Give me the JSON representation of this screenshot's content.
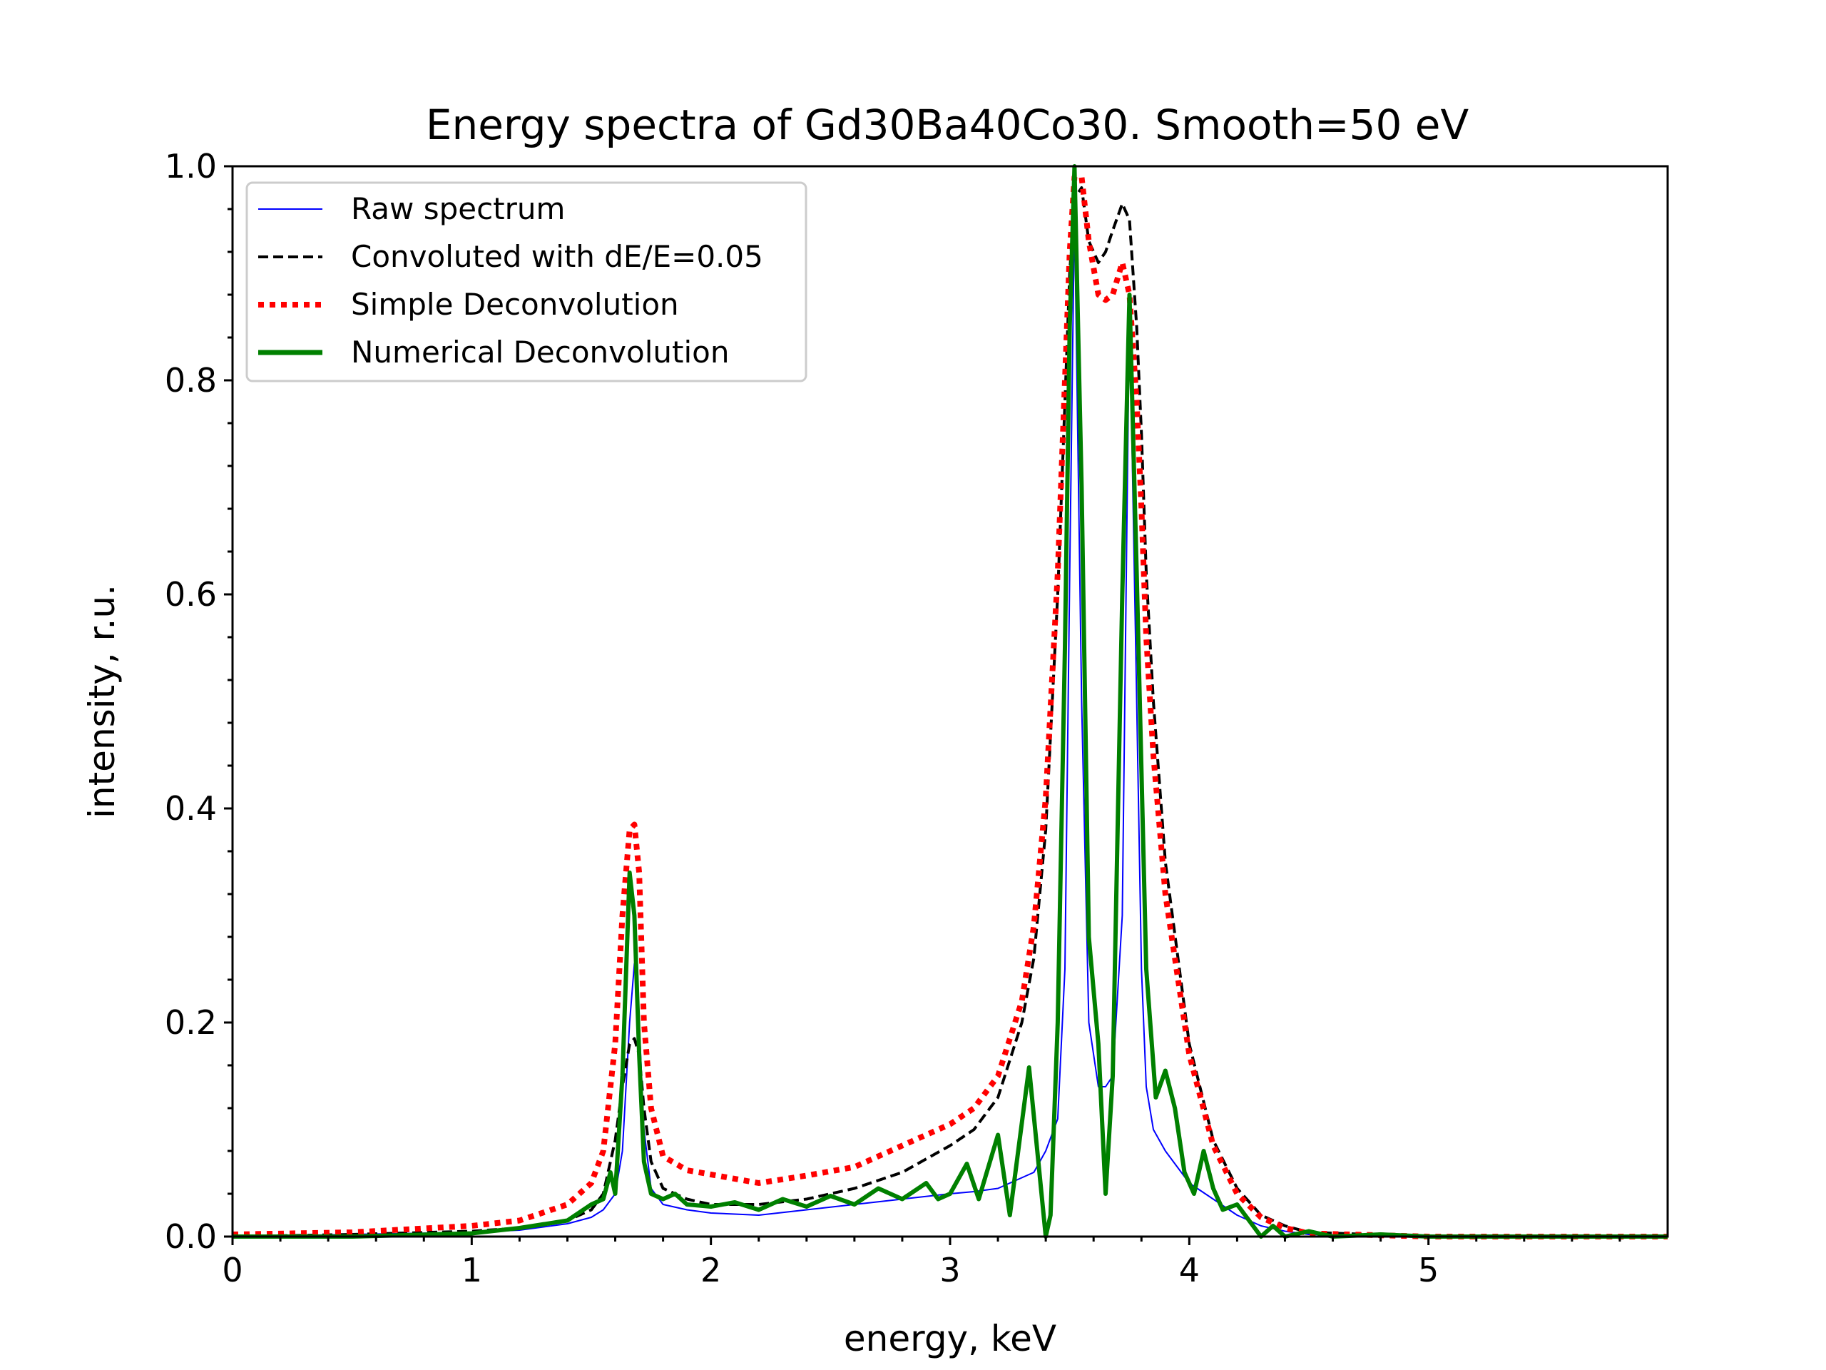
{
  "chart_data": {
    "type": "line",
    "title": "Energy spectra of Gd30Ba40Co30. Smooth=50 eV",
    "xlabel": "energy, keV",
    "ylabel": "intensity, r.u.",
    "xlim": [
      0,
      6
    ],
    "ylim": [
      0,
      1.0
    ],
    "xticks": [
      "0",
      "1",
      "2",
      "3",
      "4",
      "5"
    ],
    "yticks": [
      "0.0",
      "0.2",
      "0.4",
      "0.6",
      "0.8",
      "1.0"
    ],
    "grid": false,
    "legend_position": "upper left",
    "series": [
      {
        "name": "Raw spectrum",
        "color": "#0000ff",
        "style": "solid-thin",
        "x": [
          0,
          0.5,
          1.0,
          1.2,
          1.4,
          1.5,
          1.55,
          1.6,
          1.63,
          1.66,
          1.68,
          1.7,
          1.72,
          1.75,
          1.8,
          1.9,
          2.0,
          2.2,
          2.4,
          2.6,
          2.8,
          3.0,
          3.1,
          3.2,
          3.3,
          3.35,
          3.4,
          3.45,
          3.48,
          3.5,
          3.52,
          3.55,
          3.58,
          3.62,
          3.65,
          3.68,
          3.72,
          3.75,
          3.78,
          3.8,
          3.82,
          3.85,
          3.9,
          4.0,
          4.1,
          4.2,
          4.3,
          4.4,
          4.5,
          5.0,
          6.0
        ],
        "y": [
          0.0,
          0.002,
          0.004,
          0.006,
          0.012,
          0.018,
          0.025,
          0.04,
          0.08,
          0.2,
          0.255,
          0.2,
          0.1,
          0.045,
          0.03,
          0.025,
          0.022,
          0.02,
          0.025,
          0.03,
          0.035,
          0.04,
          0.042,
          0.045,
          0.055,
          0.06,
          0.08,
          0.11,
          0.25,
          0.62,
          0.96,
          0.5,
          0.2,
          0.14,
          0.14,
          0.15,
          0.3,
          0.87,
          0.5,
          0.25,
          0.14,
          0.1,
          0.08,
          0.05,
          0.035,
          0.02,
          0.01,
          0.005,
          0.002,
          0.0,
          0.0
        ]
      },
      {
        "name": "Convoluted with dE/E=0.05",
        "color": "#000000",
        "style": "dashed",
        "x": [
          0,
          0.5,
          1.0,
          1.2,
          1.4,
          1.5,
          1.55,
          1.6,
          1.63,
          1.66,
          1.68,
          1.7,
          1.72,
          1.75,
          1.8,
          1.9,
          2.0,
          2.2,
          2.4,
          2.6,
          2.8,
          3.0,
          3.1,
          3.2,
          3.3,
          3.35,
          3.4,
          3.45,
          3.48,
          3.5,
          3.52,
          3.55,
          3.58,
          3.62,
          3.65,
          3.68,
          3.72,
          3.75,
          3.78,
          3.8,
          3.82,
          3.85,
          3.9,
          4.0,
          4.1,
          4.2,
          4.3,
          4.4,
          4.5,
          5.0,
          6.0
        ],
        "y": [
          0.0,
          0.002,
          0.005,
          0.008,
          0.015,
          0.025,
          0.04,
          0.09,
          0.14,
          0.18,
          0.185,
          0.17,
          0.12,
          0.07,
          0.045,
          0.035,
          0.03,
          0.03,
          0.035,
          0.045,
          0.06,
          0.085,
          0.1,
          0.13,
          0.2,
          0.26,
          0.38,
          0.6,
          0.78,
          0.9,
          0.97,
          0.98,
          0.93,
          0.91,
          0.92,
          0.94,
          0.965,
          0.95,
          0.85,
          0.75,
          0.62,
          0.5,
          0.35,
          0.18,
          0.09,
          0.045,
          0.02,
          0.01,
          0.004,
          0.0,
          0.0
        ]
      },
      {
        "name": "Simple Deconvolution",
        "color": "#ff0000",
        "style": "dotted",
        "x": [
          0,
          0.5,
          1.0,
          1.2,
          1.4,
          1.5,
          1.55,
          1.6,
          1.63,
          1.66,
          1.68,
          1.7,
          1.72,
          1.75,
          1.8,
          1.9,
          2.0,
          2.2,
          2.4,
          2.6,
          2.8,
          3.0,
          3.1,
          3.2,
          3.3,
          3.35,
          3.4,
          3.45,
          3.48,
          3.5,
          3.52,
          3.55,
          3.58,
          3.62,
          3.65,
          3.68,
          3.72,
          3.75,
          3.78,
          3.8,
          3.82,
          3.85,
          3.9,
          4.0,
          4.1,
          4.2,
          4.3,
          4.4,
          4.5,
          5.0,
          6.0
        ],
        "y": [
          0.002,
          0.004,
          0.01,
          0.015,
          0.03,
          0.05,
          0.08,
          0.18,
          0.3,
          0.38,
          0.385,
          0.34,
          0.2,
          0.12,
          0.075,
          0.062,
          0.058,
          0.05,
          0.057,
          0.065,
          0.085,
          0.105,
          0.12,
          0.15,
          0.22,
          0.29,
          0.41,
          0.62,
          0.8,
          0.92,
          0.99,
          0.99,
          0.93,
          0.88,
          0.875,
          0.88,
          0.91,
          0.88,
          0.78,
          0.68,
          0.56,
          0.45,
          0.32,
          0.17,
          0.085,
          0.04,
          0.018,
          0.008,
          0.003,
          0.0,
          0.0
        ]
      },
      {
        "name": "Numerical Deconvolution",
        "color": "#008000",
        "style": "solid-thick",
        "x": [
          0,
          0.5,
          1.0,
          1.2,
          1.4,
          1.5,
          1.55,
          1.58,
          1.6,
          1.63,
          1.66,
          1.68,
          1.7,
          1.72,
          1.75,
          1.8,
          1.85,
          1.9,
          2.0,
          2.1,
          2.2,
          2.3,
          2.4,
          2.5,
          2.6,
          2.7,
          2.8,
          2.9,
          2.95,
          3.0,
          3.07,
          3.12,
          3.2,
          3.25,
          3.33,
          3.4,
          3.42,
          3.45,
          3.48,
          3.5,
          3.52,
          3.55,
          3.58,
          3.62,
          3.65,
          3.68,
          3.72,
          3.75,
          3.78,
          3.82,
          3.86,
          3.9,
          3.94,
          3.98,
          4.02,
          4.06,
          4.1,
          4.14,
          4.2,
          4.25,
          4.3,
          4.35,
          4.4,
          4.5,
          4.6,
          4.8,
          5.0,
          6.0
        ],
        "y": [
          0.0,
          0.0,
          0.003,
          0.008,
          0.015,
          0.03,
          0.035,
          0.06,
          0.04,
          0.15,
          0.34,
          0.3,
          0.17,
          0.07,
          0.04,
          0.035,
          0.04,
          0.03,
          0.028,
          0.032,
          0.025,
          0.035,
          0.028,
          0.038,
          0.03,
          0.045,
          0.035,
          0.05,
          0.035,
          0.04,
          0.068,
          0.035,
          0.095,
          0.02,
          0.158,
          0.0,
          0.02,
          0.2,
          0.55,
          0.85,
          1.0,
          0.7,
          0.28,
          0.18,
          0.04,
          0.15,
          0.6,
          0.88,
          0.62,
          0.25,
          0.13,
          0.155,
          0.12,
          0.06,
          0.04,
          0.08,
          0.045,
          0.025,
          0.03,
          0.015,
          0.0,
          0.01,
          0.0,
          0.005,
          0.0,
          0.002,
          0.0,
          0.0
        ]
      }
    ]
  }
}
